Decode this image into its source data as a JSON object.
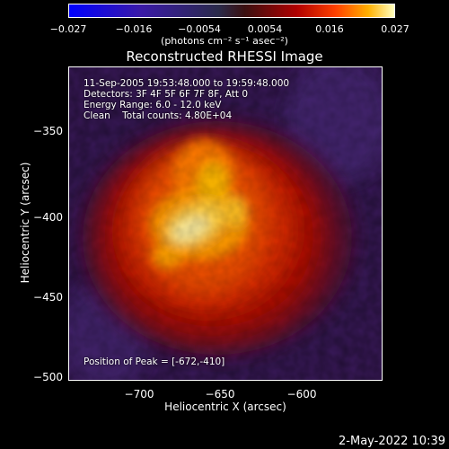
{
  "colorbar": {
    "ticks": [
      "−0.027",
      "−0.016",
      "−0.0054",
      "0.0054",
      "0.016",
      "0.027"
    ],
    "units": "(photons cm⁻² s⁻¹ asec⁻²)"
  },
  "title": "Reconstructed RHESSI Image",
  "annotations": {
    "line1": "11-Sep-2005 19:53:48.000 to 19:59:48.000",
    "line2": "Detectors: 3F 4F 5F 6F 7F 8F, Att 0",
    "line3": "Energy Range: 6.0 - 12.0 keV",
    "line4": "Clean    Total counts: 4.80E+04",
    "peak": "Position of Peak = [-672,-410]"
  },
  "axes": {
    "xlabel": "Heliocentric X (arcsec)",
    "ylabel": "Heliocentric Y (arcsec)",
    "xticks": [
      "−700",
      "−650",
      "−600"
    ],
    "yticks": [
      "−350",
      "−400",
      "−450",
      "−500"
    ]
  },
  "footer": {
    "date": "2-May-2022 10:39"
  }
}
